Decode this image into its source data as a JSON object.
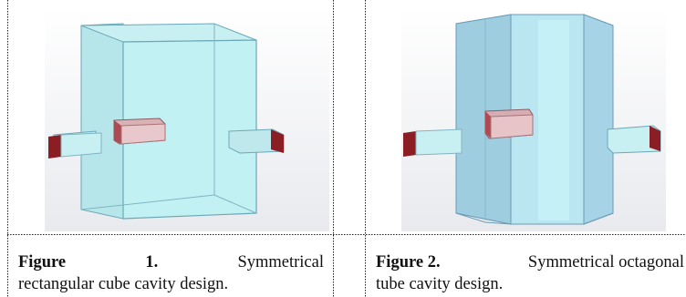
{
  "figures": [
    {
      "label": "Figure 1.",
      "label_word": "Figure",
      "label_num": "1.",
      "caption_line1_tail": "Symmetrical",
      "caption_line2": "rectangular cube cavity design."
    },
    {
      "label": "Figure 2.",
      "caption_line1_tail": "Symmetrical octagonal",
      "caption_line2": "tube cavity design."
    }
  ],
  "colors": {
    "cavity_fill": "#bfeef2",
    "cavity_edge": "#6aa8b8",
    "port_face": "#8b1e24",
    "background": "#ffffff"
  }
}
